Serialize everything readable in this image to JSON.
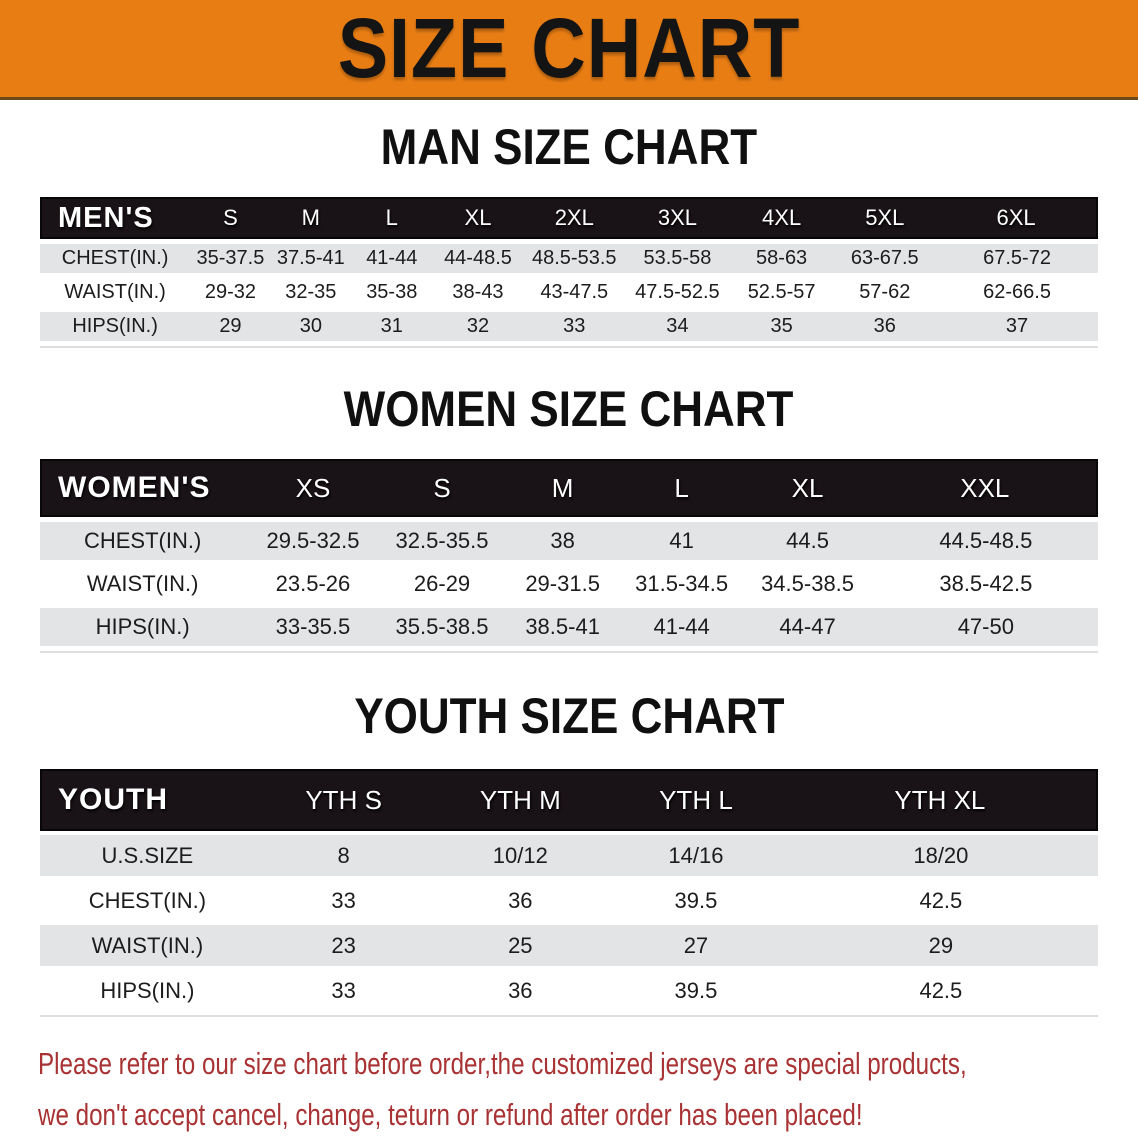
{
  "banner": {
    "title": "SIZE CHART"
  },
  "sections": [
    {
      "title": "MAN SIZE CHART",
      "table": {
        "header_label": "MEN'S",
        "columns": [
          "S",
          "M",
          "L",
          "XL",
          "2XL",
          "3XL",
          "4XL",
          "5XL",
          "6XL"
        ],
        "rows": [
          {
            "label": "CHEST(IN.)",
            "values": [
              "35-37.5",
              "37.5-41",
              "41-44",
              "44-48.5",
              "48.5-53.5",
              "53.5-58",
              "58-63",
              "63-67.5",
              "67.5-72"
            ]
          },
          {
            "label": "WAIST(IN.)",
            "values": [
              "29-32",
              "32-35",
              "35-38",
              "38-43",
              "43-47.5",
              "47.5-52.5",
              "52.5-57",
              "57-62",
              "62-66.5"
            ]
          },
          {
            "label": "HIPS(IN.)",
            "values": [
              "29",
              "30",
              "31",
              "32",
              "33",
              "34",
              "35",
              "36",
              "37"
            ]
          }
        ]
      }
    },
    {
      "title": "WOMEN SIZE CHART",
      "table": {
        "header_label": "WOMEN'S",
        "columns": [
          "XS",
          "S",
          "M",
          "L",
          "XL",
          "XXL"
        ],
        "rows": [
          {
            "label": "CHEST(IN.)",
            "values": [
              "29.5-32.5",
              "32.5-35.5",
              "38",
              "41",
              "44.5",
              "44.5-48.5"
            ]
          },
          {
            "label": "WAIST(IN.)",
            "values": [
              "23.5-26",
              "26-29",
              "29-31.5",
              "31.5-34.5",
              "34.5-38.5",
              "38.5-42.5"
            ]
          },
          {
            "label": "HIPS(IN.)",
            "values": [
              "33-35.5",
              "35.5-38.5",
              "38.5-41",
              "41-44",
              "44-47",
              "47-50"
            ]
          }
        ]
      }
    },
    {
      "title": "YOUTH SIZE CHART",
      "table": {
        "header_label": "YOUTH",
        "columns": [
          "YTH S",
          "YTH M",
          "YTH L",
          "YTH XL"
        ],
        "rows": [
          {
            "label": "U.S.SIZE",
            "values": [
              "8",
              "10/12",
              "14/16",
              "18/20"
            ]
          },
          {
            "label": "CHEST(IN.)",
            "values": [
              "33",
              "36",
              "39.5",
              "42.5"
            ]
          },
          {
            "label": "WAIST(IN.)",
            "values": [
              "23",
              "25",
              "27",
              "29"
            ]
          },
          {
            "label": "HIPS(IN.)",
            "values": [
              "33",
              "36",
              "39.5",
              "42.5"
            ]
          }
        ]
      }
    }
  ],
  "disclaimer": {
    "lines": [
      "Please refer to our size chart before order,the customized jerseys are special products,",
      "we don't accept cancel, change, teturn or refund after order has been placed!"
    ]
  },
  "colors": {
    "banner_bg": "#E87D14",
    "header_bar": "#191216",
    "row_shade": "#E2E4E6",
    "row_plain": "#FFFFFF",
    "disclaimer_text": "#A93334"
  }
}
